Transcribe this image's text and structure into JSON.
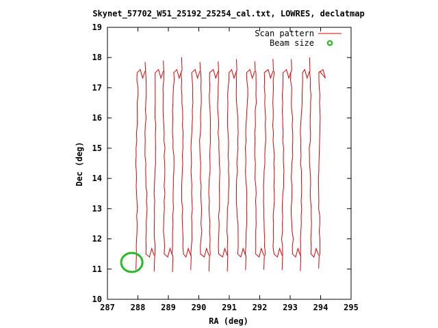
{
  "chart_data": {
    "type": "line",
    "title": "Skynet_57702_W51_25192_25254_cal.txt, LOWRES, declatmap",
    "xlabel": "RA (deg)",
    "ylabel": "Dec (deg)",
    "xlim": [
      287,
      295
    ],
    "ylim": [
      10,
      19
    ],
    "x_ticks": [
      "287",
      "288",
      "289",
      "290",
      "291",
      "292",
      "293",
      "294",
      "295"
    ],
    "y_ticks": [
      "10",
      "11",
      "12",
      "13",
      "14",
      "15",
      "16",
      "17",
      "18",
      "19"
    ],
    "grid": false,
    "legend_position": "top-right",
    "series": [
      {
        "name": "Scan pattern",
        "color": "#dd0000",
        "scan_ra_start": [
          287.95,
          288.25,
          288.55,
          288.85,
          289.15,
          289.45,
          289.75,
          290.05,
          290.35,
          290.65,
          290.95,
          291.25,
          291.55,
          291.85,
          292.15,
          292.45,
          292.75,
          293.05,
          293.35,
          293.65,
          293.95
        ],
        "scan_dec_range": [
          11.5,
          17.5
        ],
        "overshoot_high": 18.05,
        "overshoot_low": 10.9
      }
    ],
    "beam": {
      "name": "Beam size",
      "color": "#22bb22",
      "center_ra": 287.8,
      "center_dec": 11.22,
      "radius_deg": 0.35
    }
  }
}
